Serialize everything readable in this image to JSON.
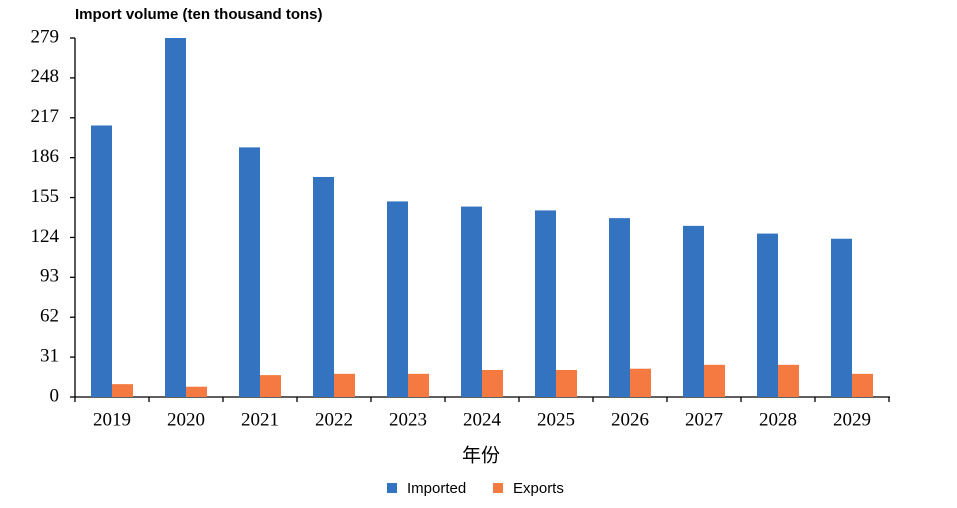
{
  "chart_data": {
    "type": "bar",
    "title": "Import volume (ten thousand tons)",
    "x_label": "年份",
    "categories": [
      "2019",
      "2020",
      "2021",
      "2022",
      "2023",
      "2024",
      "2025",
      "2026",
      "2027",
      "2028",
      "2029"
    ],
    "series": [
      {
        "name": "Imported",
        "color": "#3473c0",
        "values": [
          211,
          279,
          194,
          171,
          152,
          148,
          145,
          139,
          133,
          127,
          123
        ]
      },
      {
        "name": "Exports",
        "color": "#f47a42",
        "values": [
          10,
          8,
          17,
          18,
          18,
          21,
          21,
          22,
          25,
          25,
          18
        ]
      }
    ],
    "ylim": [
      0,
      279
    ],
    "yticks": [
      0,
      31,
      62,
      93,
      124,
      155,
      186,
      217,
      248,
      279
    ],
    "grid": false
  }
}
